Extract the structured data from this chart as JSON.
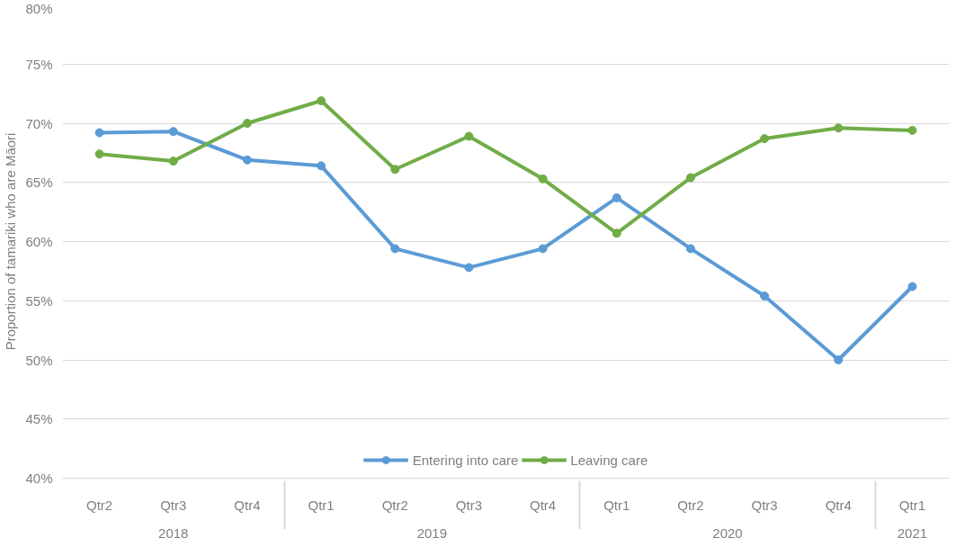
{
  "chart_data": {
    "type": "line",
    "ylabel": "Proportion of tamariki who are Māori",
    "categories": [
      "Qtr2",
      "Qtr3",
      "Qtr4",
      "Qtr1",
      "Qtr2",
      "Qtr3",
      "Qtr4",
      "Qtr1",
      "Qtr2",
      "Qtr3",
      "Qtr4",
      "Qtr1"
    ],
    "annotations": [
      "2018",
      "2019",
      "2020",
      "2021"
    ],
    "series": [
      {
        "name": "Entering into care",
        "color": "#5b9bd5",
        "values": [
          69.2,
          69.3,
          66.9,
          66.4,
          59.4,
          57.8,
          59.4,
          63.7,
          59.4,
          55.4,
          50.0,
          56.2
        ]
      },
      {
        "name": "Leaving care",
        "color": "#70ad47",
        "values": [
          67.4,
          66.8,
          70.0,
          71.9,
          66.1,
          68.9,
          65.3,
          60.7,
          65.4,
          68.7,
          69.6,
          69.4
        ]
      }
    ],
    "ylim": [
      40,
      80
    ],
    "yticks": [
      {
        "value": 40,
        "label": "40%"
      },
      {
        "value": 45,
        "label": "45%"
      },
      {
        "value": 50,
        "label": "50%"
      },
      {
        "value": 55,
        "label": "55%"
      },
      {
        "value": 60,
        "label": "60%"
      },
      {
        "value": 65,
        "label": "65%"
      },
      {
        "value": 70,
        "label": "70%"
      },
      {
        "value": 75,
        "label": "75%"
      },
      {
        "value": 80,
        "label": "80%"
      }
    ],
    "grid": "y",
    "legend": "bottom",
    "marker": "circle",
    "line_style": "solid"
  }
}
